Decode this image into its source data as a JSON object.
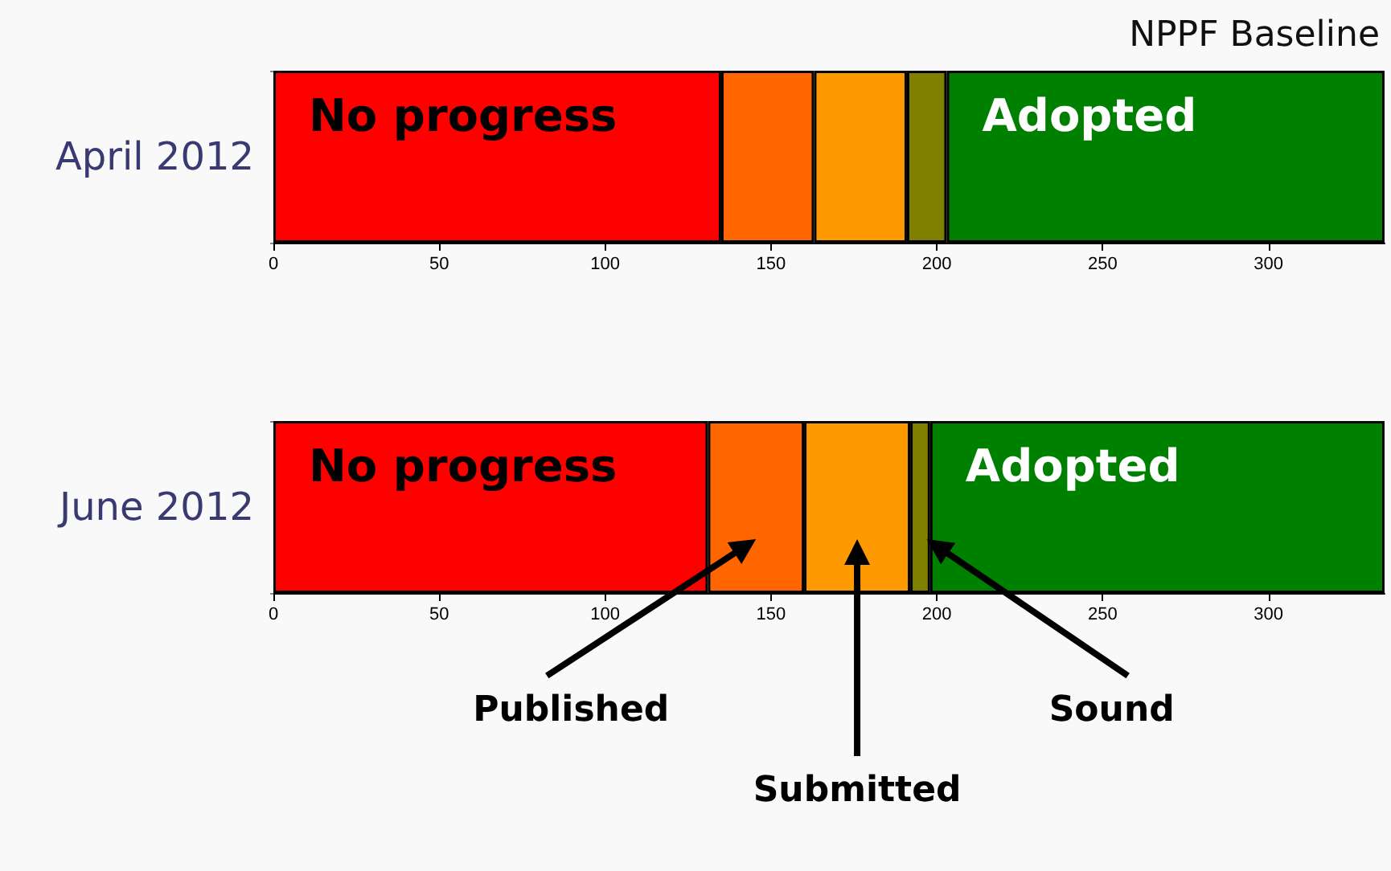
{
  "chart_data": [
    {
      "type": "bar",
      "title": "NPPF Baseline",
      "orientation": "horizontal",
      "stacked": true,
      "categories": [
        "April 2012"
      ],
      "xlim": [
        0,
        335
      ],
      "xticks": [
        0,
        50,
        100,
        150,
        200,
        250,
        300
      ],
      "grid": false,
      "legend": false,
      "series": [
        {
          "name": "No progress",
          "color": "#ff0000",
          "values": [
            135
          ]
        },
        {
          "color": "#ff6600",
          "values": [
            28
          ]
        },
        {
          "color": "#ff9900",
          "values": [
            28
          ]
        },
        {
          "color": "#808000",
          "values": [
            12
          ]
        },
        {
          "name": "Adopted",
          "color": "#008000",
          "values": [
            132
          ]
        }
      ]
    },
    {
      "type": "bar",
      "orientation": "horizontal",
      "stacked": true,
      "categories": [
        "June 2012"
      ],
      "xlim": [
        0,
        335
      ],
      "xticks": [
        0,
        50,
        100,
        150,
        200,
        250,
        300
      ],
      "grid": false,
      "legend": false,
      "series": [
        {
          "name": "No progress",
          "color": "#ff0000",
          "values": [
            131
          ]
        },
        {
          "color": "#ff6600",
          "values": [
            29
          ]
        },
        {
          "color": "#ff9900",
          "values": [
            32
          ]
        },
        {
          "color": "#808000",
          "values": [
            6
          ]
        },
        {
          "name": "Adopted",
          "color": "#008000",
          "values": [
            137
          ]
        }
      ],
      "annotations": [
        "Published",
        "Submitted",
        "Sound"
      ]
    }
  ]
}
